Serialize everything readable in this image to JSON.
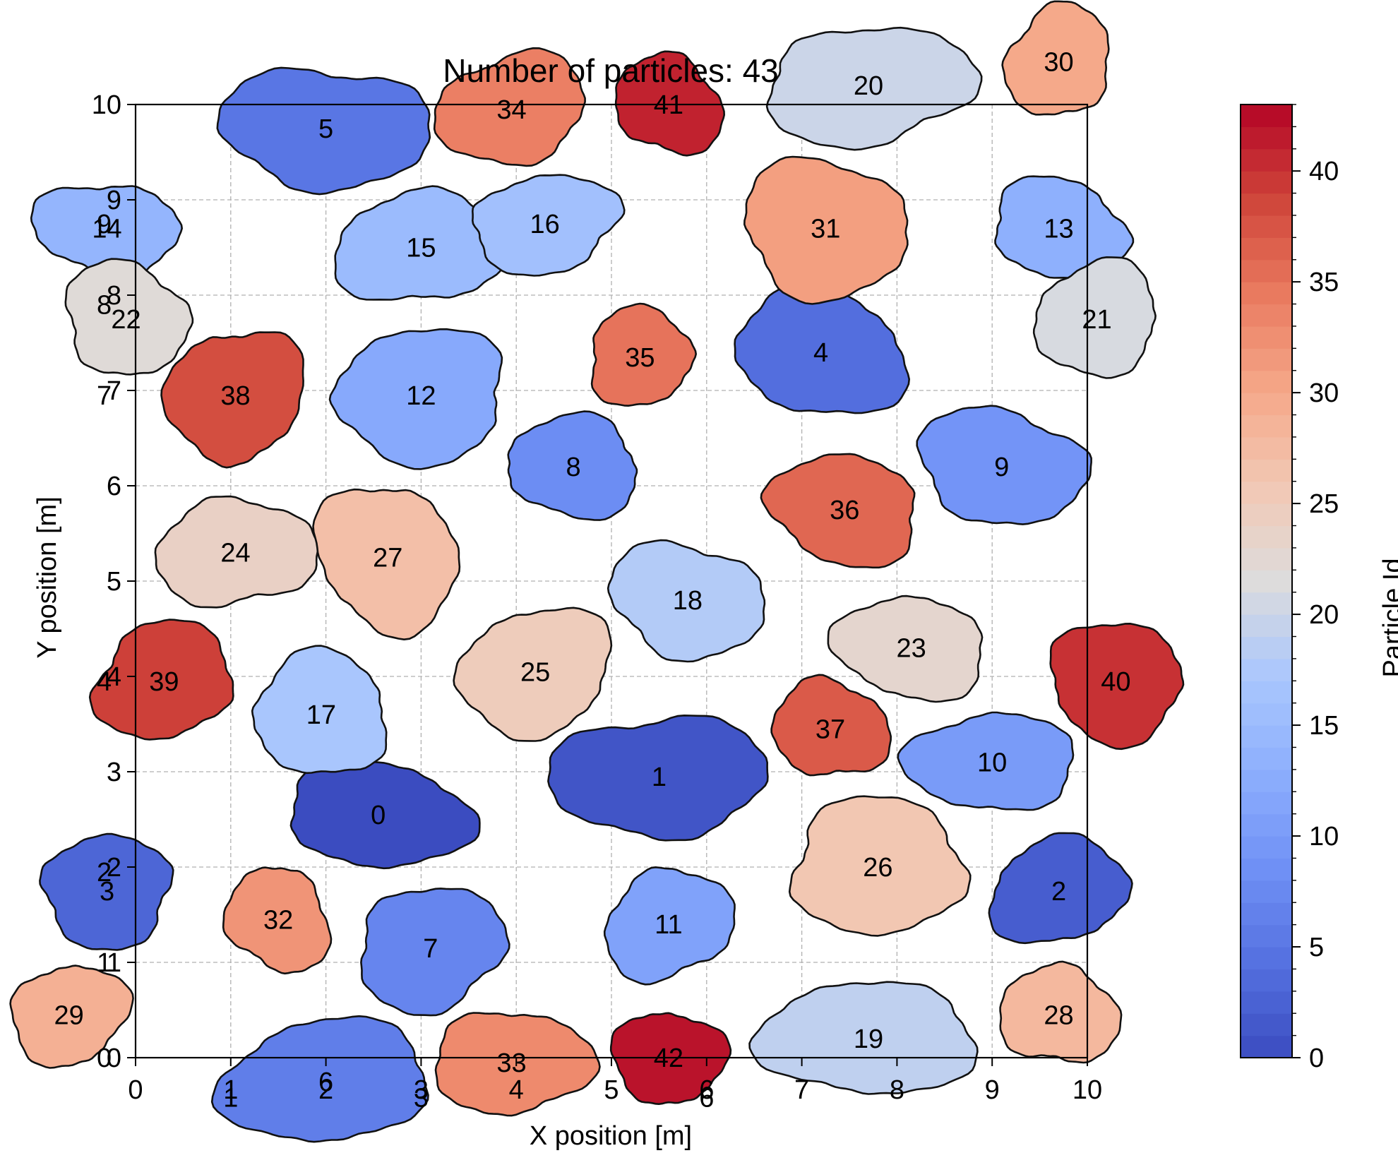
{
  "chart_data": {
    "type": "scatter",
    "title": "Number of particles: 43",
    "xlabel": "X position [m]",
    "ylabel": "Y position [m]",
    "xlim": [
      0,
      10
    ],
    "ylim": [
      0,
      10
    ],
    "x_ticks": [
      "0",
      "1",
      "2",
      "3",
      "4",
      "5",
      "6",
      "7",
      "8",
      "9",
      "10"
    ],
    "y_ticks": [
      "0",
      "1",
      "2",
      "3",
      "4",
      "5",
      "6",
      "7",
      "8",
      "9",
      "10"
    ],
    "grid": true,
    "colorbar": {
      "label": "Particle Id",
      "range": [
        0,
        43
      ],
      "ticks": [
        "0",
        "5",
        "10",
        "15",
        "20",
        "25",
        "30",
        "35",
        "40"
      ],
      "colormap": "coolwarm"
    },
    "particles": [
      {
        "id": 0,
        "x": 2.55,
        "y": 2.55,
        "rx": 0.92,
        "ry": 0.58
      },
      {
        "id": 1,
        "x": 5.5,
        "y": 2.95,
        "rx": 1.05,
        "ry": 0.68
      },
      {
        "id": 2,
        "x": 9.7,
        "y": 1.75,
        "rx": 0.72,
        "ry": 0.55
      },
      {
        "id": 3,
        "x": -0.3,
        "y": 1.75,
        "rx": 0.72,
        "ry": 0.55
      },
      {
        "id": 4,
        "x": 7.2,
        "y": 7.4,
        "rx": 0.9,
        "ry": 0.66
      },
      {
        "id": 5,
        "x": 2.0,
        "y": 9.75,
        "rx": 1.02,
        "ry": 0.68
      },
      {
        "id": 6,
        "x": 2.0,
        "y": -0.25,
        "rx": 1.02,
        "ry": 0.68
      },
      {
        "id": 7,
        "x": 3.1,
        "y": 1.15,
        "rx": 0.8,
        "ry": 0.62
      },
      {
        "id": 8,
        "x": 4.6,
        "y": 6.2,
        "rx": 0.73,
        "ry": 0.5
      },
      {
        "id": 9,
        "x": 9.1,
        "y": 6.2,
        "rx": 0.85,
        "ry": 0.62
      },
      {
        "id": 10,
        "x": 9.0,
        "y": 3.1,
        "rx": 0.82,
        "ry": 0.55
      },
      {
        "id": 11,
        "x": 5.6,
        "y": 1.4,
        "rx": 0.66,
        "ry": 0.58
      },
      {
        "id": 12,
        "x": 3.0,
        "y": 6.95,
        "rx": 0.95,
        "ry": 0.66
      },
      {
        "id": 13,
        "x": 9.7,
        "y": 8.7,
        "rx": 0.72,
        "ry": 0.5
      },
      {
        "id": 14,
        "x": -0.3,
        "y": 8.7,
        "rx": 0.72,
        "ry": 0.5
      },
      {
        "id": 15,
        "x": 3.0,
        "y": 8.5,
        "rx": 0.85,
        "ry": 0.62
      },
      {
        "id": 16,
        "x": 4.3,
        "y": 8.75,
        "rx": 0.78,
        "ry": 0.5
      },
      {
        "id": 17,
        "x": 1.95,
        "y": 3.6,
        "rx": 0.75,
        "ry": 0.6
      },
      {
        "id": 18,
        "x": 5.8,
        "y": 4.8,
        "rx": 0.8,
        "ry": 0.6
      },
      {
        "id": 19,
        "x": 7.7,
        "y": 0.2,
        "rx": 1.05,
        "ry": 0.64
      },
      {
        "id": 20,
        "x": 7.7,
        "y": 10.2,
        "rx": 1.05,
        "ry": 0.64
      },
      {
        "id": 21,
        "x": 10.1,
        "y": 7.75,
        "rx": 0.68,
        "ry": 0.56
      },
      {
        "id": 22,
        "x": -0.1,
        "y": 7.75,
        "rx": 0.68,
        "ry": 0.56
      },
      {
        "id": 23,
        "x": 8.15,
        "y": 4.3,
        "rx": 0.75,
        "ry": 0.56
      },
      {
        "id": 24,
        "x": 1.05,
        "y": 5.3,
        "rx": 0.78,
        "ry": 0.6
      },
      {
        "id": 25,
        "x": 4.2,
        "y": 4.05,
        "rx": 0.8,
        "ry": 0.66
      },
      {
        "id": 26,
        "x": 7.8,
        "y": 2.0,
        "rx": 0.98,
        "ry": 0.66
      },
      {
        "id": 27,
        "x": 2.65,
        "y": 5.25,
        "rx": 0.75,
        "ry": 0.75
      },
      {
        "id": 28,
        "x": 9.7,
        "y": 0.45,
        "rx": 0.58,
        "ry": 0.55
      },
      {
        "id": 29,
        "x": -0.7,
        "y": 0.45,
        "rx": 0.58,
        "ry": 0.55
      },
      {
        "id": 30,
        "x": 9.7,
        "y": 10.45,
        "rx": 0.58,
        "ry": 0.55
      },
      {
        "id": 31,
        "x": 7.25,
        "y": 8.7,
        "rx": 0.92,
        "ry": 0.68
      },
      {
        "id": 32,
        "x": 1.5,
        "y": 1.45,
        "rx": 0.52,
        "ry": 0.56
      },
      {
        "id": 33,
        "x": 3.95,
        "y": -0.05,
        "rx": 0.77,
        "ry": 0.58
      },
      {
        "id": 34,
        "x": 3.95,
        "y": 9.95,
        "rx": 0.77,
        "ry": 0.58
      },
      {
        "id": 35,
        "x": 5.3,
        "y": 7.35,
        "rx": 0.58,
        "ry": 0.48
      },
      {
        "id": 36,
        "x": 7.45,
        "y": 5.75,
        "rx": 0.8,
        "ry": 0.56
      },
      {
        "id": 37,
        "x": 7.3,
        "y": 3.45,
        "rx": 0.57,
        "ry": 0.54
      },
      {
        "id": 38,
        "x": 1.05,
        "y": 6.95,
        "rx": 0.68,
        "ry": 0.73
      },
      {
        "id": 39,
        "x": 0.3,
        "y": 3.95,
        "rx": 0.74,
        "ry": 0.59
      },
      {
        "id": 40,
        "x": 10.3,
        "y": 3.95,
        "rx": 0.74,
        "ry": 0.59
      },
      {
        "id": 41,
        "x": 5.6,
        "y": 10.0,
        "rx": 0.55,
        "ry": 0.52
      },
      {
        "id": 42,
        "x": 5.6,
        "y": 0.0,
        "rx": 0.55,
        "ry": 0.52
      }
    ],
    "label_points": [
      {
        "text": "9",
        "x": -0.33,
        "y": 8.75
      },
      {
        "text": "8",
        "x": -0.33,
        "y": 7.9
      },
      {
        "text": "7",
        "x": -0.33,
        "y": 6.95
      },
      {
        "text": "4",
        "x": -0.33,
        "y": 3.95
      },
      {
        "text": "2",
        "x": -0.33,
        "y": 1.95
      },
      {
        "text": "1",
        "x": -0.33,
        "y": 1.0
      },
      {
        "text": "0",
        "x": -0.33,
        "y": 0.0
      },
      {
        "text": "1",
        "x": 1.0,
        "y": -0.42
      },
      {
        "text": "3",
        "x": 3.0,
        "y": -0.42
      },
      {
        "text": "6",
        "x": 6.0,
        "y": -0.42
      }
    ]
  }
}
